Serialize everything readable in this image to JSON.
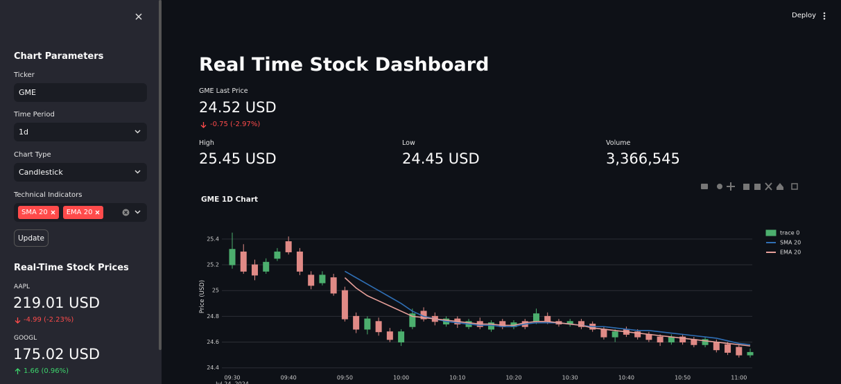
{
  "sidebar": {
    "title": "Chart Parameters",
    "ticker_label": "Ticker",
    "ticker_value": "GME",
    "period_label": "Time Period",
    "period_value": "1d",
    "type_label": "Chart Type",
    "type_value": "Candlestick",
    "indicators_label": "Technical Indicators",
    "indicators": [
      "SMA 20",
      "EMA 20"
    ],
    "update_button": "Update",
    "prices_title": "Real-Time Stock Prices",
    "prices": [
      {
        "symbol": "AAPL",
        "price": "219.01 USD",
        "change": "-4.99 (-2.23%)"
      },
      {
        "symbol": "GOOGL",
        "price": "175.02 USD",
        "change": "1.66 (0.96%)"
      }
    ]
  },
  "header": {
    "deploy": "Deploy"
  },
  "main": {
    "title": "Real Time Stock Dashboard",
    "metrics": [
      {
        "label": "GME Last Price",
        "value": "24.52 USD",
        "delta": "-0.75 (-2.97%)"
      },
      {
        "label": "High",
        "value": "25.45 USD"
      },
      {
        "label": "Low",
        "value": "24.45 USD"
      },
      {
        "label": "Volume",
        "value": "3,366,545"
      }
    ]
  },
  "chart_data": {
    "type": "candlestick",
    "title": "GME 1D Chart",
    "y_label": "Price (USD)",
    "x_date": "Jul 24, 2024",
    "candle_name": "trace 0",
    "increasing_color": "#4caf6e",
    "decreasing_color": "#e08a86",
    "categories": [
      "09:30",
      null,
      null,
      null,
      null,
      "09:40",
      null,
      null,
      null,
      null,
      "09:50",
      null,
      null,
      null,
      null,
      "10:00",
      null,
      null,
      null,
      null,
      "10:10",
      null,
      null,
      null,
      null,
      "10:20",
      null,
      null,
      null,
      null,
      "10:30",
      null,
      null,
      null,
      null,
      "10:40",
      null,
      null,
      null,
      null,
      "10:50",
      null,
      null,
      null,
      null,
      "11:00",
      null
    ],
    "open": [
      25.2,
      25.3,
      25.2,
      25.15,
      25.25,
      25.38,
      25.3,
      25.12,
      25.06,
      25.1,
      25.0,
      24.8,
      24.7,
      24.76,
      24.68,
      24.6,
      24.72,
      24.84,
      24.8,
      24.74,
      24.78,
      24.72,
      24.76,
      24.7,
      24.76,
      24.72,
      24.76,
      24.76,
      24.8,
      24.76,
      24.74,
      24.76,
      24.74,
      24.7,
      24.64,
      24.7,
      24.68,
      24.66,
      24.64,
      24.6,
      24.64,
      24.62,
      24.58,
      24.6,
      24.58,
      24.56,
      24.5
    ],
    "high": [
      25.45,
      25.36,
      25.24,
      25.25,
      25.33,
      25.42,
      25.33,
      25.15,
      25.15,
      25.13,
      25.03,
      24.83,
      24.8,
      24.79,
      24.71,
      24.7,
      24.86,
      24.87,
      24.83,
      24.8,
      24.8,
      24.78,
      24.79,
      24.77,
      24.78,
      24.77,
      24.78,
      24.86,
      24.83,
      24.78,
      24.78,
      24.78,
      24.76,
      24.72,
      24.7,
      24.72,
      24.7,
      24.68,
      24.66,
      24.66,
      24.66,
      24.64,
      24.64,
      24.62,
      24.6,
      24.58,
      24.55
    ],
    "low": [
      25.17,
      25.13,
      25.08,
      25.13,
      25.23,
      25.28,
      25.12,
      25.01,
      25.04,
      24.96,
      24.76,
      24.67,
      24.66,
      24.65,
      24.6,
      24.57,
      24.7,
      24.76,
      24.73,
      24.72,
      24.71,
      24.7,
      24.7,
      24.68,
      24.7,
      24.7,
      24.7,
      24.74,
      24.74,
      24.72,
      24.72,
      24.7,
      24.68,
      24.62,
      24.6,
      24.64,
      24.62,
      24.6,
      24.57,
      24.58,
      24.58,
      24.56,
      24.56,
      24.52,
      24.5,
      24.48,
      24.48
    ],
    "close": [
      25.32,
      25.15,
      25.12,
      25.22,
      25.3,
      25.3,
      25.15,
      25.04,
      25.12,
      24.98,
      24.78,
      24.7,
      24.78,
      24.68,
      24.62,
      24.68,
      24.82,
      24.78,
      24.76,
      24.78,
      24.74,
      24.76,
      24.72,
      24.75,
      24.72,
      24.75,
      24.72,
      24.82,
      24.76,
      24.74,
      24.76,
      24.72,
      24.7,
      24.64,
      24.68,
      24.66,
      24.64,
      24.62,
      24.6,
      24.64,
      24.6,
      24.58,
      24.62,
      24.54,
      24.52,
      24.5,
      24.52
    ],
    "series": [
      {
        "name": "SMA 20",
        "color": "#2f6fb5",
        "values": [
          null,
          null,
          null,
          null,
          null,
          null,
          null,
          null,
          null,
          null,
          25.15,
          25.1,
          25.05,
          25.0,
          24.95,
          24.9,
          24.84,
          24.8,
          24.78,
          24.76,
          24.75,
          24.74,
          24.73,
          24.73,
          24.72,
          24.72,
          24.74,
          24.75,
          24.75,
          24.75,
          24.74,
          24.73,
          24.72,
          24.72,
          24.71,
          24.7,
          24.69,
          24.69,
          24.68,
          24.67,
          24.66,
          24.65,
          24.64,
          24.63,
          24.61,
          24.59,
          24.58
        ]
      },
      {
        "name": "EMA 20",
        "color": "#e8a09a",
        "values": [
          null,
          null,
          null,
          null,
          null,
          null,
          null,
          null,
          null,
          null,
          25.1,
          25.02,
          24.96,
          24.92,
          24.88,
          24.84,
          24.8,
          24.79,
          24.78,
          24.77,
          24.76,
          24.75,
          24.74,
          24.74,
          24.73,
          24.73,
          24.75,
          24.76,
          24.76,
          24.75,
          24.74,
          24.73,
          24.71,
          24.7,
          24.69,
          24.68,
          24.67,
          24.66,
          24.65,
          24.64,
          24.63,
          24.62,
          24.61,
          24.6,
          24.59,
          24.58,
          24.57
        ]
      }
    ],
    "ylim": [
      24.35,
      25.48
    ],
    "yticks": [
      24.4,
      24.6,
      24.8,
      25,
      25.2,
      25.4
    ],
    "grid": true
  }
}
